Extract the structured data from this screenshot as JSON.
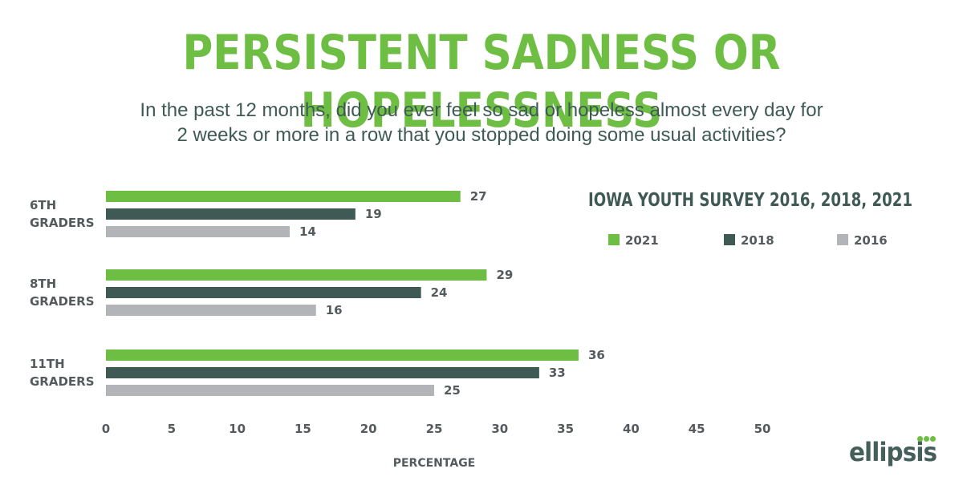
{
  "chart_data": {
    "type": "bar",
    "orientation": "horizontal",
    "title": "PERSISTENT SADNESS OR HOPELESSNESS",
    "subtitle_lines": [
      "In the past 12 months, did you ever feel so sad or hopeless almost every day for",
      "2 weeks or more in a row that you stopped doing some usual activities?"
    ],
    "legend_title": "IOWA YOUTH SURVEY  2016, 2018, 2021",
    "categories": [
      [
        "6TH",
        "GRADERS"
      ],
      [
        "8TH",
        "GRADERS"
      ],
      [
        "11TH",
        "GRADERS"
      ]
    ],
    "series": [
      {
        "name": "2021",
        "color": "#6ebe44",
        "values": [
          27,
          29,
          36
        ]
      },
      {
        "name": "2018",
        "color": "#3f5a55",
        "values": [
          19,
          24,
          33
        ]
      },
      {
        "name": "2016",
        "color": "#b3b4b7",
        "values": [
          14,
          16,
          25
        ]
      }
    ],
    "xlabel": "PERCENTAGE",
    "xlim": [
      0,
      50
    ],
    "xticks": [
      0,
      5,
      10,
      15,
      20,
      25,
      30,
      35,
      40,
      45,
      50
    ],
    "legend_position": "top-right",
    "grid": false
  },
  "branding": {
    "logo_text": "ellipsis",
    "logo_color": "#45605b",
    "dot_color": "#6ebe44"
  }
}
